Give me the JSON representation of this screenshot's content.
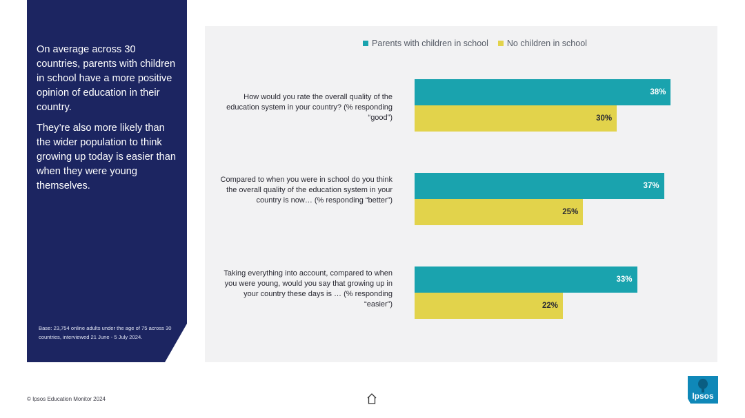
{
  "side": {
    "paragraph1": "On average across 30 countries, parents with children in school have a more positive opinion of education in their country.",
    "paragraph2": "They’re also more likely than the wider population to think growing up today is easier than when they were young themselves.",
    "base_note": "Base: 23,754 online adults under the age of 75 across 30 countries, interviewed 21 June - 5 July 2024."
  },
  "footer": {
    "copyright": "© Ipsos Education Monitor 2024",
    "logo_text": "Ipsos",
    "home_icon": "home-icon"
  },
  "colors": {
    "panel": "#1c2561",
    "parents": "#1aa3ae",
    "no_children": "#e2d34b"
  },
  "chart_data": {
    "type": "bar",
    "orientation": "horizontal",
    "legend_position": "top",
    "categories": [
      "How would you rate the overall quality of the education system in your country? (% responding “good”)",
      "Compared to when you were in school do you think the overall quality of the education system in your country is now… (% responding “better”)",
      "Taking everything into account, compared to when you were young, would you say that growing up in your  country these days is … (% responding “easier”)"
    ],
    "series": [
      {
        "name": "Parents with children in school",
        "values": [
          38,
          37,
          33
        ],
        "labels": [
          "38%",
          "37%",
          "33%"
        ]
      },
      {
        "name": "No children in school",
        "values": [
          30,
          25,
          22
        ],
        "labels": [
          "30%",
          "25%",
          "22%"
        ]
      }
    ],
    "xlim": [
      0,
      44
    ]
  }
}
